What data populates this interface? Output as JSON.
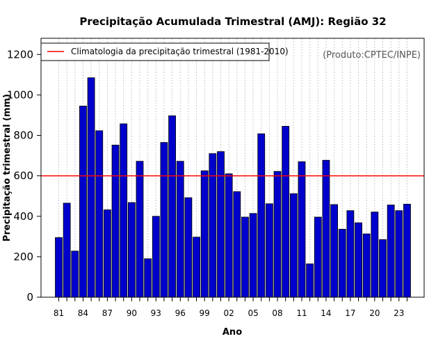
{
  "chart_data": {
    "type": "bar",
    "title": "Precipitação Acumulada Trimestral (AMJ): Região 32",
    "xlabel": "Ano",
    "ylabel": "Precipitação trimestral (mm)",
    "ylim": [
      0,
      1280
    ],
    "yticks": [
      0,
      200,
      400,
      600,
      800,
      1000,
      1200
    ],
    "years": [
      "81",
      "82",
      "83",
      "84",
      "85",
      "86",
      "87",
      "88",
      "89",
      "90",
      "91",
      "92",
      "93",
      "94",
      "95",
      "96",
      "97",
      "98",
      "99",
      "00",
      "01",
      "02",
      "03",
      "04",
      "05",
      "06",
      "07",
      "08",
      "09",
      "10",
      "11",
      "12",
      "13",
      "14",
      "15",
      "16",
      "17",
      "18",
      "19",
      "20",
      "21",
      "22",
      "23",
      "24"
    ],
    "xtick_labels": [
      "81",
      "84",
      "87",
      "90",
      "93",
      "96",
      "99",
      "02",
      "05",
      "08",
      "11",
      "14",
      "17",
      "20",
      "23"
    ],
    "values": [
      295,
      465,
      228,
      945,
      1085,
      823,
      432,
      752,
      857,
      468,
      672,
      190,
      400,
      765,
      897,
      672,
      492,
      297,
      625,
      710,
      720,
      610,
      522,
      396,
      414,
      808,
      462,
      622,
      845,
      512,
      670,
      165,
      396,
      677,
      458,
      336,
      428,
      368,
      313,
      421,
      285,
      456,
      428,
      460
    ],
    "climatology": 600,
    "legend_label": "Climatologia da precipitação trimestral (1981-2010)",
    "legend_position": "top-left",
    "source": "(Produto:CPTEC/INPE)",
    "colors": {
      "bar_fill": "#0000cc",
      "bar_stroke": "#000000",
      "climatology_line": "#ff0000",
      "grid": "#c8c8c8",
      "source_text": "#555555"
    }
  }
}
